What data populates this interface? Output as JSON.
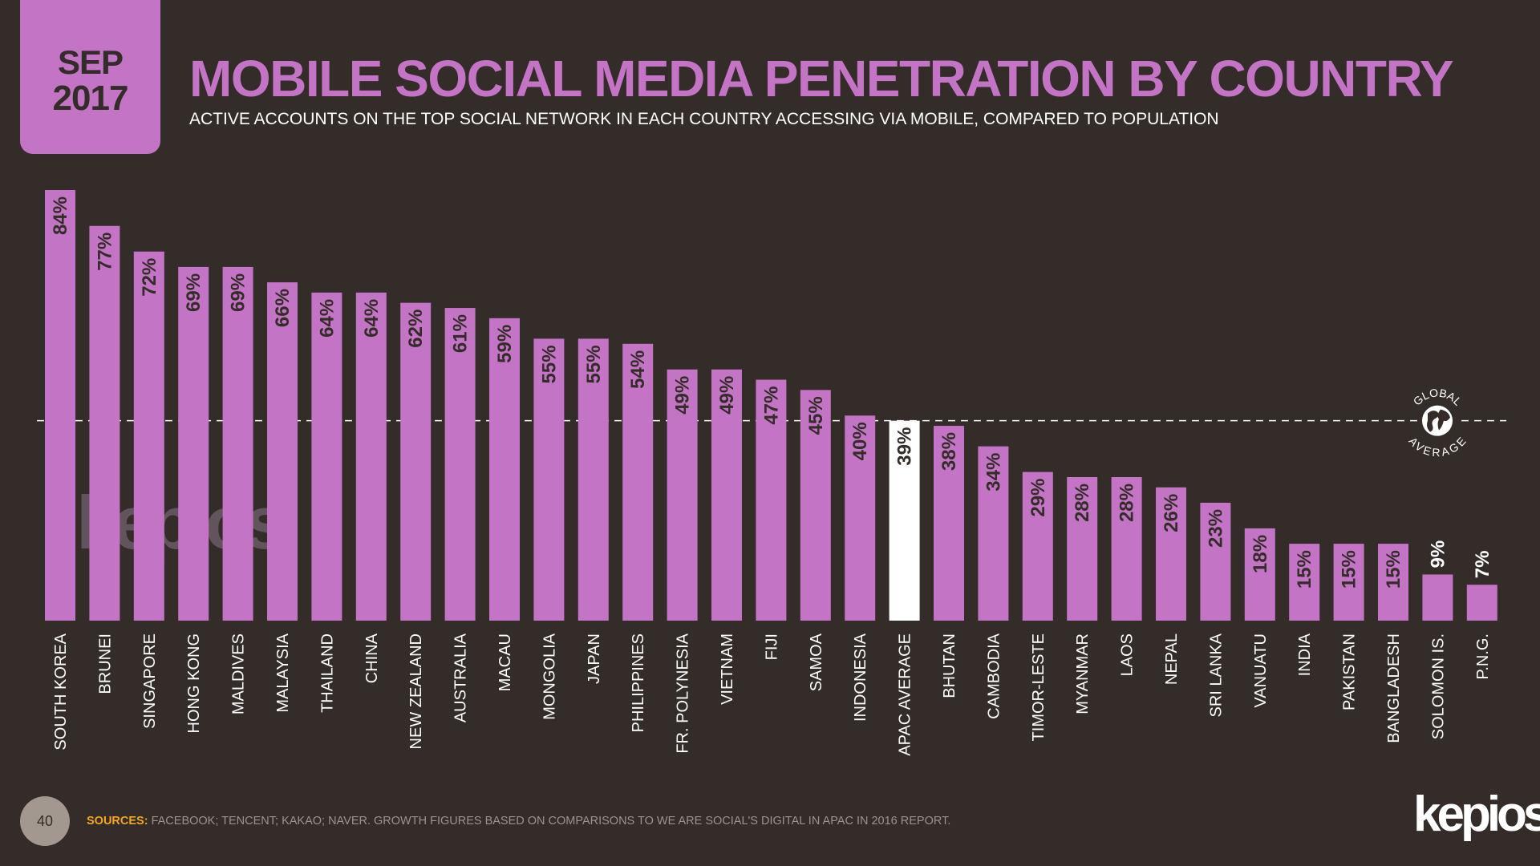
{
  "badge": {
    "month": "SEP",
    "year": "2017"
  },
  "header": {
    "title": "MOBILE SOCIAL MEDIA PENETRATION BY COUNTRY",
    "subtitle": "ACTIVE ACCOUNTS ON THE TOP SOCIAL NETWORK IN EACH COUNTRY ACCESSING VIA MOBILE, COMPARED TO POPULATION"
  },
  "footer": {
    "page_number": "40",
    "sources_label": "SOURCES:",
    "sources_text": "FACEBOOK; TENCENT; KAKAO; NAVER. GROWTH FIGURES BASED ON COMPARISONS TO WE ARE SOCIAL'S DIGITAL IN APAC IN 2016 REPORT.",
    "brand": "kepios"
  },
  "watermark": "kepios",
  "colors": {
    "background": "#332c28",
    "bar": "#c374c4",
    "highlight_bar": "#ffffff",
    "label_text": "#332c28",
    "axis_text": "#ffffff",
    "sources_label": "#f5a623"
  },
  "chart_data": {
    "type": "bar",
    "title": "MOBILE SOCIAL MEDIA PENETRATION BY COUNTRY",
    "xlabel": "",
    "ylabel": "",
    "ylim": [
      0,
      84
    ],
    "grid": false,
    "categories": [
      "SOUTH KOREA",
      "BRUNEI",
      "SINGAPORE",
      "HONG KONG",
      "MALDIVES",
      "MALAYSIA",
      "THAILAND",
      "CHINA",
      "NEW ZEALAND",
      "AUSTRALIA",
      "MACAU",
      "MONGOLIA",
      "JAPAN",
      "PHILIPPINES",
      "FR. POLYNESIA",
      "VIETNAM",
      "FIJI",
      "SAMOA",
      "INDONESIA",
      "APAC AVERAGE",
      "BHUTAN",
      "CAMBODIA",
      "TIMOR-LESTE",
      "MYANMAR",
      "LAOS",
      "NEPAL",
      "SRI LANKA",
      "VANUATU",
      "INDIA",
      "PAKISTAN",
      "BANGLADESH",
      "SOLOMON IS.",
      "P.N.G."
    ],
    "values": [
      84,
      77,
      72,
      69,
      69,
      66,
      64,
      64,
      62,
      61,
      59,
      55,
      55,
      54,
      49,
      49,
      47,
      45,
      40,
      39,
      38,
      34,
      29,
      28,
      28,
      26,
      23,
      18,
      15,
      15,
      15,
      9,
      7
    ],
    "value_labels": [
      "84%",
      "77%",
      "72%",
      "69%",
      "69%",
      "66%",
      "64%",
      "64%",
      "62%",
      "61%",
      "59%",
      "55%",
      "55%",
      "54%",
      "49%",
      "49%",
      "47%",
      "45%",
      "40%",
      "39%",
      "38%",
      "34%",
      "29%",
      "28%",
      "28%",
      "26%",
      "23%",
      "18%",
      "15%",
      "15%",
      "15%",
      "9%",
      "7%"
    ],
    "highlight_category": "APAC AVERAGE",
    "reference_line": {
      "value": 39,
      "label_top": "GLOBAL",
      "label_bottom": "AVERAGE"
    }
  }
}
